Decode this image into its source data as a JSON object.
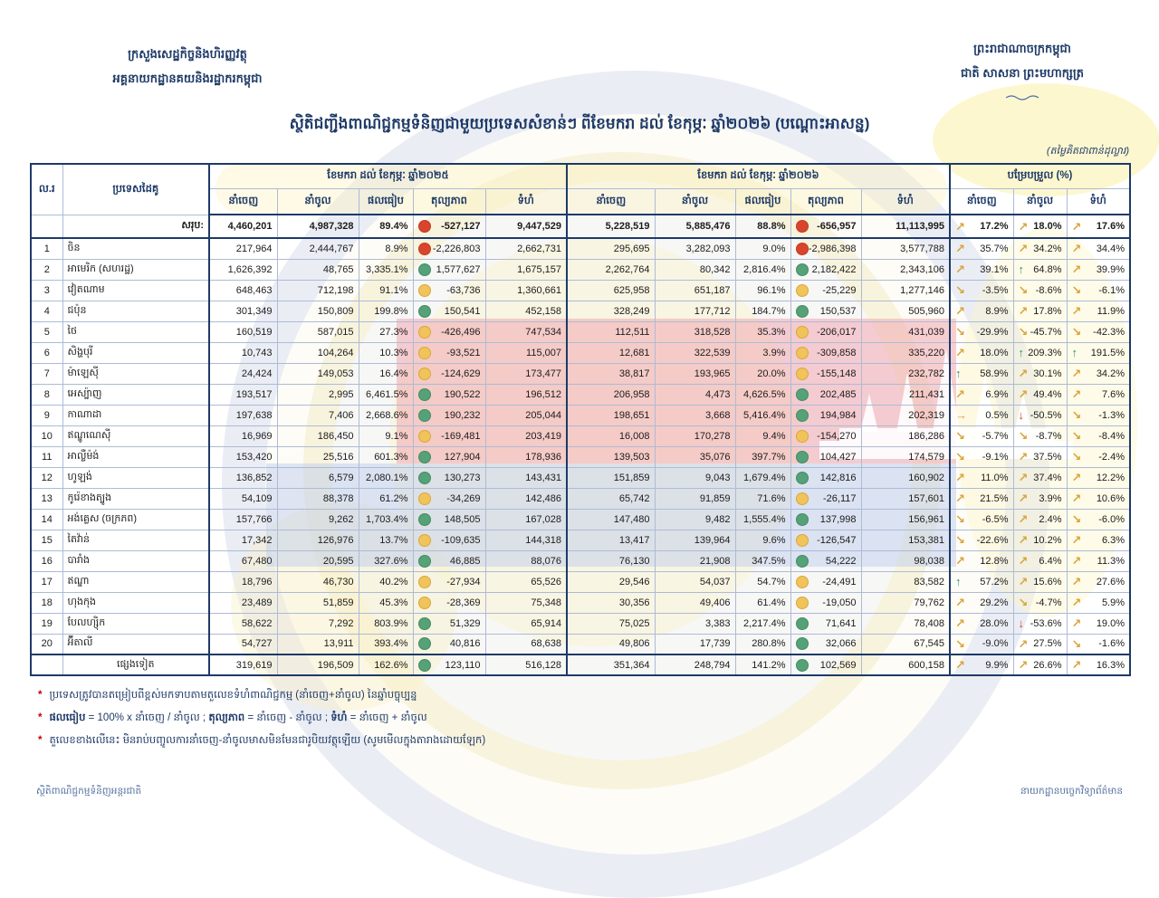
{
  "page": {
    "header_left": [
      "ក្រសួងសេដ្ឋកិច្ចនិងហិរញ្ញវត្ថុ",
      "អគ្គនាយកដ្ឋានគយនិងរដ្ឋាករកម្ពុជា"
    ],
    "header_right": [
      "ព្រះរាជាណាចក្រកម្ពុជា",
      "ជាតិ សាសនា ព្រះមហាក្សត្រ"
    ],
    "title": "ស្ថិតិជញ្ជីងពាណិជ្ជកម្មទំនិញជាមួយប្រទេសសំខាន់ៗ ពីខែមករា ដល់ ខែកុម្ភៈ ឆ្នាំ២០២៦ (បណ្ដោះអាសន្ន)",
    "unit_note": "(តម្លៃគិតជាពាន់ដុល្លារ)",
    "footer_left": "ស្ថិតិពាណិជ្ជកម្មទំនិញអន្តរជាតិ",
    "footer_right": "នាយកដ្ឋានបច្ចេកវិទ្យាព័ត៌មាន"
  },
  "colors": {
    "accent_navy": "#1e3a67",
    "dot_red": "#d9452c",
    "dot_yellow": "#f0c45a",
    "dot_green": "#55a178",
    "arrow_gold": "#d9a43b",
    "arrow_green": "#2f9474",
    "arrow_red": "#cf4328"
  },
  "table": {
    "col_no": "ល.រ",
    "col_country": "ប្រទេសដៃគូ",
    "group_2025": "ខែមករា ដល់ ខែកុម្ភៈ ឆ្នាំ២០២៥",
    "group_2026": "ខែមករា ដល់ ខែកុម្ភៈ ឆ្នាំ២០២៦",
    "group_change": "បម្រែបម្រួល (%)",
    "sub_cols": [
      "នាំចេញ",
      "នាំចូល",
      "ផលធៀប",
      "តុល្យភាព",
      "ទំហំ"
    ],
    "change_cols": [
      "នាំចេញ",
      "នាំចូល",
      "ទំហំ"
    ],
    "total": {
      "no": "",
      "name": "សរុប:",
      "y25": {
        "exp": "4,460,201",
        "imp": "4,987,328",
        "ratio": "89.4%",
        "dot": "red",
        "bal": "-527,127",
        "vol": "9,447,529"
      },
      "y26": {
        "exp": "5,228,519",
        "imp": "5,885,476",
        "ratio": "88.8%",
        "dot": "red",
        "bal": "-656,957",
        "vol": "11,113,995"
      },
      "chg": [
        {
          "a": "ne",
          "v": "17.2%"
        },
        {
          "a": "ne",
          "v": "18.0%"
        },
        {
          "a": "ne",
          "v": "17.6%"
        }
      ]
    },
    "rows": [
      {
        "no": "1",
        "name": "ចិន",
        "y25": {
          "exp": "217,964",
          "imp": "2,444,767",
          "ratio": "8.9%",
          "dot": "red",
          "bal": "-2,226,803",
          "vol": "2,662,731"
        },
        "y26": {
          "exp": "295,695",
          "imp": "3,282,093",
          "ratio": "9.0%",
          "dot": "red",
          "bal": "-2,986,398",
          "vol": "3,577,788"
        },
        "chg": [
          {
            "a": "ne",
            "v": "35.7%"
          },
          {
            "a": "ne",
            "v": "34.2%"
          },
          {
            "a": "ne",
            "v": "34.4%"
          }
        ]
      },
      {
        "no": "2",
        "name": "អាមេរិក (សហរដ្ឋ)",
        "y25": {
          "exp": "1,626,392",
          "imp": "48,765",
          "ratio": "3,335.1%",
          "dot": "green",
          "bal": "1,577,627",
          "vol": "1,675,157"
        },
        "y26": {
          "exp": "2,262,764",
          "imp": "80,342",
          "ratio": "2,816.4%",
          "dot": "green",
          "bal": "2,182,422",
          "vol": "2,343,106"
        },
        "chg": [
          {
            "a": "ne",
            "v": "39.1%"
          },
          {
            "a": "up",
            "v": "64.8%"
          },
          {
            "a": "ne",
            "v": "39.9%"
          }
        ]
      },
      {
        "no": "3",
        "name": "វៀតណាម",
        "y25": {
          "exp": "648,463",
          "imp": "712,198",
          "ratio": "91.1%",
          "dot": "yellow",
          "bal": "-63,736",
          "vol": "1,360,661"
        },
        "y26": {
          "exp": "625,958",
          "imp": "651,187",
          "ratio": "96.1%",
          "dot": "yellow",
          "bal": "-25,229",
          "vol": "1,277,146"
        },
        "chg": [
          {
            "a": "se",
            "v": "-3.5%"
          },
          {
            "a": "se",
            "v": "-8.6%"
          },
          {
            "a": "se",
            "v": "-6.1%"
          }
        ]
      },
      {
        "no": "4",
        "name": "ជប៉ុន",
        "y25": {
          "exp": "301,349",
          "imp": "150,809",
          "ratio": "199.8%",
          "dot": "green",
          "bal": "150,541",
          "vol": "452,158"
        },
        "y26": {
          "exp": "328,249",
          "imp": "177,712",
          "ratio": "184.7%",
          "dot": "green",
          "bal": "150,537",
          "vol": "505,960"
        },
        "chg": [
          {
            "a": "ne",
            "v": "8.9%"
          },
          {
            "a": "ne",
            "v": "17.8%"
          },
          {
            "a": "ne",
            "v": "11.9%"
          }
        ]
      },
      {
        "no": "5",
        "name": "ថៃ",
        "y25": {
          "exp": "160,519",
          "imp": "587,015",
          "ratio": "27.3%",
          "dot": "yellow",
          "bal": "-426,496",
          "vol": "747,534"
        },
        "y26": {
          "exp": "112,511",
          "imp": "318,528",
          "ratio": "35.3%",
          "dot": "yellow",
          "bal": "-206,017",
          "vol": "431,039"
        },
        "chg": [
          {
            "a": "se",
            "v": "-29.9%"
          },
          {
            "a": "se",
            "v": "-45.7%"
          },
          {
            "a": "se",
            "v": "-42.3%"
          }
        ]
      },
      {
        "no": "6",
        "name": "សិង្ហបុរី",
        "y25": {
          "exp": "10,743",
          "imp": "104,264",
          "ratio": "10.3%",
          "dot": "yellow",
          "bal": "-93,521",
          "vol": "115,007"
        },
        "y26": {
          "exp": "12,681",
          "imp": "322,539",
          "ratio": "3.9%",
          "dot": "yellow",
          "bal": "-309,858",
          "vol": "335,220"
        },
        "chg": [
          {
            "a": "ne",
            "v": "18.0%"
          },
          {
            "a": "up",
            "v": "209.3%"
          },
          {
            "a": "up",
            "v": "191.5%"
          }
        ]
      },
      {
        "no": "7",
        "name": "ម៉ាឡេស៊ី",
        "y25": {
          "exp": "24,424",
          "imp": "149,053",
          "ratio": "16.4%",
          "dot": "yellow",
          "bal": "-124,629",
          "vol": "173,477"
        },
        "y26": {
          "exp": "38,817",
          "imp": "193,965",
          "ratio": "20.0%",
          "dot": "yellow",
          "bal": "-155,148",
          "vol": "232,782"
        },
        "chg": [
          {
            "a": "up",
            "v": "58.9%"
          },
          {
            "a": "ne",
            "v": "30.1%"
          },
          {
            "a": "ne",
            "v": "34.2%"
          }
        ]
      },
      {
        "no": "8",
        "name": "អេស្ប៉ាញ",
        "y25": {
          "exp": "193,517",
          "imp": "2,995",
          "ratio": "6,461.5%",
          "dot": "green",
          "bal": "190,522",
          "vol": "196,512"
        },
        "y26": {
          "exp": "206,958",
          "imp": "4,473",
          "ratio": "4,626.5%",
          "dot": "green",
          "bal": "202,485",
          "vol": "211,431"
        },
        "chg": [
          {
            "a": "ne",
            "v": "6.9%"
          },
          {
            "a": "ne",
            "v": "49.4%"
          },
          {
            "a": "ne",
            "v": "7.6%"
          }
        ]
      },
      {
        "no": "9",
        "name": "កាណាដា",
        "y25": {
          "exp": "197,638",
          "imp": "7,406",
          "ratio": "2,668.6%",
          "dot": "green",
          "bal": "190,232",
          "vol": "205,044"
        },
        "y26": {
          "exp": "198,651",
          "imp": "3,668",
          "ratio": "5,416.4%",
          "dot": "green",
          "bal": "194,984",
          "vol": "202,319"
        },
        "chg": [
          {
            "a": "e",
            "v": "0.5%"
          },
          {
            "a": "down",
            "v": "-50.5%"
          },
          {
            "a": "se",
            "v": "-1.3%"
          }
        ]
      },
      {
        "no": "10",
        "name": "ឥណ្ឌូណេស៊ី",
        "y25": {
          "exp": "16,969",
          "imp": "186,450",
          "ratio": "9.1%",
          "dot": "yellow",
          "bal": "-169,481",
          "vol": "203,419"
        },
        "y26": {
          "exp": "16,008",
          "imp": "170,278",
          "ratio": "9.4%",
          "dot": "yellow",
          "bal": "-154,270",
          "vol": "186,286"
        },
        "chg": [
          {
            "a": "se",
            "v": "-5.7%"
          },
          {
            "a": "se",
            "v": "-8.7%"
          },
          {
            "a": "se",
            "v": "-8.4%"
          }
        ]
      },
      {
        "no": "11",
        "name": "អាល្លឺម៉ង់",
        "y25": {
          "exp": "153,420",
          "imp": "25,516",
          "ratio": "601.3%",
          "dot": "green",
          "bal": "127,904",
          "vol": "178,936"
        },
        "y26": {
          "exp": "139,503",
          "imp": "35,076",
          "ratio": "397.7%",
          "dot": "green",
          "bal": "104,427",
          "vol": "174,579"
        },
        "chg": [
          {
            "a": "se",
            "v": "-9.1%"
          },
          {
            "a": "ne",
            "v": "37.5%"
          },
          {
            "a": "se",
            "v": "-2.4%"
          }
        ]
      },
      {
        "no": "12",
        "name": "ហូឡង់",
        "y25": {
          "exp": "136,852",
          "imp": "6,579",
          "ratio": "2,080.1%",
          "dot": "green",
          "bal": "130,273",
          "vol": "143,431"
        },
        "y26": {
          "exp": "151,859",
          "imp": "9,043",
          "ratio": "1,679.4%",
          "dot": "green",
          "bal": "142,816",
          "vol": "160,902"
        },
        "chg": [
          {
            "a": "ne",
            "v": "11.0%"
          },
          {
            "a": "ne",
            "v": "37.4%"
          },
          {
            "a": "ne",
            "v": "12.2%"
          }
        ]
      },
      {
        "no": "13",
        "name": "កូរ៉េខាងត្បូង",
        "y25": {
          "exp": "54,109",
          "imp": "88,378",
          "ratio": "61.2%",
          "dot": "yellow",
          "bal": "-34,269",
          "vol": "142,486"
        },
        "y26": {
          "exp": "65,742",
          "imp": "91,859",
          "ratio": "71.6%",
          "dot": "yellow",
          "bal": "-26,117",
          "vol": "157,601"
        },
        "chg": [
          {
            "a": "ne",
            "v": "21.5%"
          },
          {
            "a": "ne",
            "v": "3.9%"
          },
          {
            "a": "ne",
            "v": "10.6%"
          }
        ]
      },
      {
        "no": "14",
        "name": "អង់គ្លេស (ចក្រភព)",
        "y25": {
          "exp": "157,766",
          "imp": "9,262",
          "ratio": "1,703.4%",
          "dot": "green",
          "bal": "148,505",
          "vol": "167,028"
        },
        "y26": {
          "exp": "147,480",
          "imp": "9,482",
          "ratio": "1,555.4%",
          "dot": "green",
          "bal": "137,998",
          "vol": "156,961"
        },
        "chg": [
          {
            "a": "se",
            "v": "-6.5%"
          },
          {
            "a": "ne",
            "v": "2.4%"
          },
          {
            "a": "se",
            "v": "-6.0%"
          }
        ]
      },
      {
        "no": "15",
        "name": "តៃវ៉ាន់",
        "y25": {
          "exp": "17,342",
          "imp": "126,976",
          "ratio": "13.7%",
          "dot": "yellow",
          "bal": "-109,635",
          "vol": "144,318"
        },
        "y26": {
          "exp": "13,417",
          "imp": "139,964",
          "ratio": "9.6%",
          "dot": "yellow",
          "bal": "-126,547",
          "vol": "153,381"
        },
        "chg": [
          {
            "a": "se",
            "v": "-22.6%"
          },
          {
            "a": "ne",
            "v": "10.2%"
          },
          {
            "a": "ne",
            "v": "6.3%"
          }
        ]
      },
      {
        "no": "16",
        "name": "បារាំង",
        "y25": {
          "exp": "67,480",
          "imp": "20,595",
          "ratio": "327.6%",
          "dot": "green",
          "bal": "46,885",
          "vol": "88,076"
        },
        "y26": {
          "exp": "76,130",
          "imp": "21,908",
          "ratio": "347.5%",
          "dot": "green",
          "bal": "54,222",
          "vol": "98,038"
        },
        "chg": [
          {
            "a": "ne",
            "v": "12.8%"
          },
          {
            "a": "ne",
            "v": "6.4%"
          },
          {
            "a": "ne",
            "v": "11.3%"
          }
        ]
      },
      {
        "no": "17",
        "name": "ឥណ្ឌា",
        "y25": {
          "exp": "18,796",
          "imp": "46,730",
          "ratio": "40.2%",
          "dot": "yellow",
          "bal": "-27,934",
          "vol": "65,526"
        },
        "y26": {
          "exp": "29,546",
          "imp": "54,037",
          "ratio": "54.7%",
          "dot": "yellow",
          "bal": "-24,491",
          "vol": "83,582"
        },
        "chg": [
          {
            "a": "up",
            "v": "57.2%"
          },
          {
            "a": "ne",
            "v": "15.6%"
          },
          {
            "a": "ne",
            "v": "27.6%"
          }
        ]
      },
      {
        "no": "18",
        "name": "ហុងកុង",
        "y25": {
          "exp": "23,489",
          "imp": "51,859",
          "ratio": "45.3%",
          "dot": "yellow",
          "bal": "-28,369",
          "vol": "75,348"
        },
        "y26": {
          "exp": "30,356",
          "imp": "49,406",
          "ratio": "61.4%",
          "dot": "yellow",
          "bal": "-19,050",
          "vol": "79,762"
        },
        "chg": [
          {
            "a": "ne",
            "v": "29.2%"
          },
          {
            "a": "se",
            "v": "-4.7%"
          },
          {
            "a": "ne",
            "v": "5.9%"
          }
        ]
      },
      {
        "no": "19",
        "name": "បែលហ្ស៊ិក",
        "y25": {
          "exp": "58,622",
          "imp": "7,292",
          "ratio": "803.9%",
          "dot": "green",
          "bal": "51,329",
          "vol": "65,914"
        },
        "y26": {
          "exp": "75,025",
          "imp": "3,383",
          "ratio": "2,217.4%",
          "dot": "green",
          "bal": "71,641",
          "vol": "78,408"
        },
        "chg": [
          {
            "a": "ne",
            "v": "28.0%"
          },
          {
            "a": "down",
            "v": "-53.6%"
          },
          {
            "a": "ne",
            "v": "19.0%"
          }
        ]
      },
      {
        "no": "20",
        "name": "អ៊ីតាលី",
        "y25": {
          "exp": "54,727",
          "imp": "13,911",
          "ratio": "393.4%",
          "dot": "green",
          "bal": "40,816",
          "vol": "68,638"
        },
        "y26": {
          "exp": "49,806",
          "imp": "17,739",
          "ratio": "280.8%",
          "dot": "green",
          "bal": "32,066",
          "vol": "67,545"
        },
        "chg": [
          {
            "a": "se",
            "v": "-9.0%"
          },
          {
            "a": "ne",
            "v": "27.5%"
          },
          {
            "a": "se",
            "v": "-1.6%"
          }
        ]
      }
    ],
    "others": {
      "no": "",
      "name": "ផ្សេងទៀត",
      "y25": {
        "exp": "319,619",
        "imp": "196,509",
        "ratio": "162.6%",
        "dot": "green",
        "bal": "123,110",
        "vol": "516,128"
      },
      "y26": {
        "exp": "351,364",
        "imp": "248,794",
        "ratio": "141.2%",
        "dot": "green",
        "bal": "102,569",
        "vol": "600,158"
      },
      "chg": [
        {
          "a": "ne",
          "v": "9.9%"
        },
        {
          "a": "ne",
          "v": "26.6%"
        },
        {
          "a": "ne",
          "v": "16.3%"
        }
      ]
    }
  },
  "notes": [
    {
      "parts": [
        {
          "t": "ប្រទេសត្រូវបានតម្រៀបពីខ្ពស់មកទាបតាមតួលេខទំហំពាណិជ្ជកម្ម (នាំចេញ+នាំចូល) នៃឆ្នាំបច្ចុប្បន្ន"
        }
      ]
    },
    {
      "parts": [
        {
          "t": "ផលធៀប",
          "b": 1
        },
        {
          "t": " = 100% x នាំចេញ / នាំចូល ; "
        },
        {
          "t": "តុល្យភាព",
          "b": 1
        },
        {
          "t": " = នាំចេញ - នាំចូល ; "
        },
        {
          "t": "ទំហំ",
          "b": 1
        },
        {
          "t": " = នាំចេញ + នាំចូល"
        }
      ]
    },
    {
      "parts": [
        {
          "t": "តួលេខខាងលើនេះ មិនរាប់បញ្ចូលការនាំចេញ-នាំចូលមាសមិនមែនជារូបិយវត្ថុឡើយ (សូមមើលក្នុងតារាងដោយឡែក)"
        }
      ]
    }
  ]
}
